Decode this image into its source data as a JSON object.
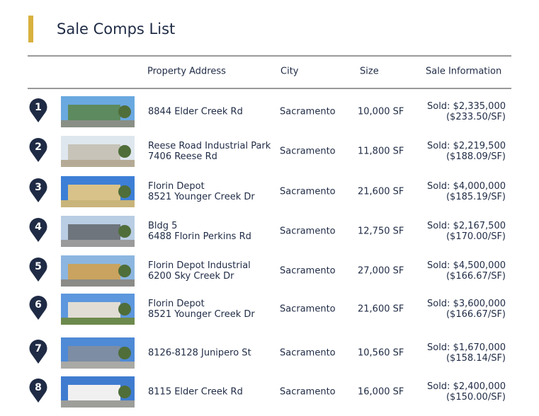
{
  "title": "Sale Comps List",
  "headers": [
    "Property Address",
    "City",
    "Size",
    "Sale Information"
  ],
  "rows": [
    {
      "number": "1",
      "address": [
        "8844 Elder Creek Rd"
      ],
      "city": "Sacramento",
      "size": "10,000 SF",
      "sale": [
        "Sold: $2,335,000",
        "($233.50/SF)"
      ]
    },
    {
      "number": "2",
      "address": [
        "Reese Road Industrial Park",
        "7406 Reese Rd"
      ],
      "city": "Sacramento",
      "size": "11,800 SF",
      "sale": [
        "Sold: $2,219,500",
        "($188.09/SF)"
      ]
    },
    {
      "number": "3",
      "address": [
        "Florin Depot",
        "8521 Younger Creek Dr"
      ],
      "city": "Sacramento",
      "size": "21,600 SF",
      "sale": [
        "Sold: $4,000,000",
        "($185.19/SF)"
      ]
    },
    {
      "number": "4",
      "address": [
        "Bldg 5",
        "6488 Florin Perkins Rd"
      ],
      "city": "Sacramento",
      "size": "12,750 SF",
      "sale": [
        "Sold: $2,167,500",
        "($170.00/SF)"
      ]
    },
    {
      "number": "5",
      "address": [
        "Florin Depot Industrial",
        "6200 Sky Creek Dr"
      ],
      "city": "Sacramento",
      "size": "27,000 SF",
      "sale": [
        "Sold: $4,500,000",
        "($166.67/SF)"
      ]
    },
    {
      "number": "6",
      "address": [
        "Florin Depot",
        "8521 Younger Creek Dr"
      ],
      "city": "Sacramento",
      "size": "21,600 SF",
      "sale": [
        "Sold: $3,600,000",
        "($166.67/SF)"
      ]
    },
    {
      "number": "7",
      "address": [
        "8126-8128 Junipero St"
      ],
      "city": "Sacramento",
      "size": "10,560 SF",
      "sale": [
        "Sold: $1,670,000",
        "($158.14/SF)"
      ]
    },
    {
      "number": "8",
      "address": [
        "8115 Elder Creek Rd"
      ],
      "city": "Sacramento",
      "size": "16,000 SF",
      "sale": [
        "Sold: $2,400,000",
        "($150.00/SF)"
      ]
    }
  ]
}
